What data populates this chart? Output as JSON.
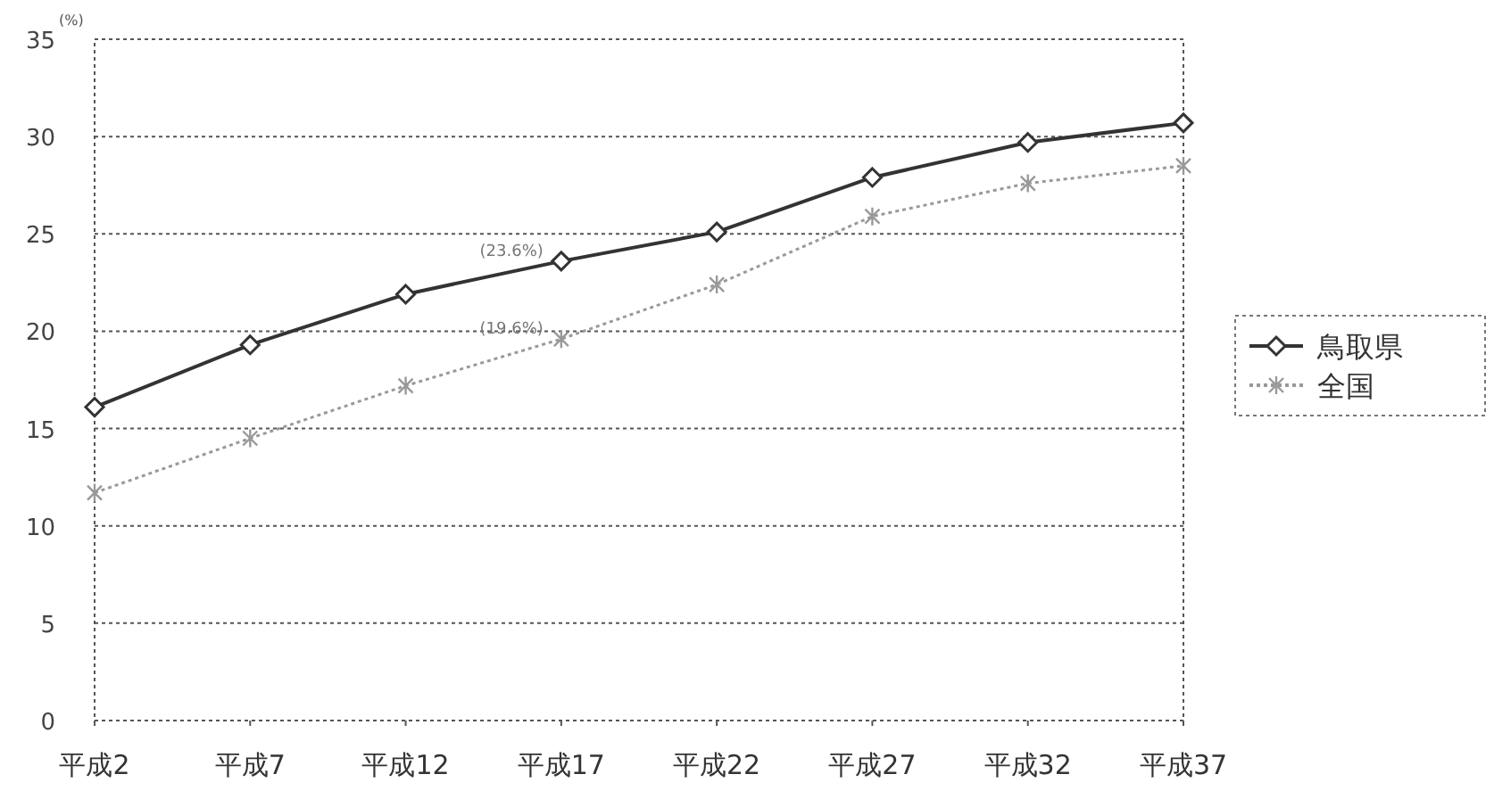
{
  "chart_data": {
    "type": "line",
    "ylabel": "(%)",
    "categories": [
      "平成2",
      "平成7",
      "平成12",
      "平成17",
      "平成22",
      "平成27",
      "平成32",
      "平成37"
    ],
    "series": [
      {
        "name": "鳥取県",
        "color": "#333333",
        "marker": "diamond",
        "line_style": "solid",
        "values": [
          16.1,
          19.3,
          21.9,
          23.6,
          25.1,
          27.9,
          29.7,
          30.7
        ]
      },
      {
        "name": "全国",
        "color": "#999999",
        "marker": "cross",
        "line_style": "dotted",
        "values": [
          11.7,
          14.5,
          17.2,
          19.6,
          22.4,
          25.9,
          27.6,
          28.5
        ]
      }
    ],
    "annotations": [
      {
        "text": "(23.6%)",
        "x": "平成17",
        "y": 23.6
      },
      {
        "text": "(19.6%)",
        "x": "平成17",
        "y": 19.6
      }
    ],
    "ylim": [
      0,
      35
    ],
    "yticks": [
      0,
      5,
      10,
      15,
      20,
      25,
      30,
      35
    ],
    "grid": "y",
    "legend": "right"
  }
}
